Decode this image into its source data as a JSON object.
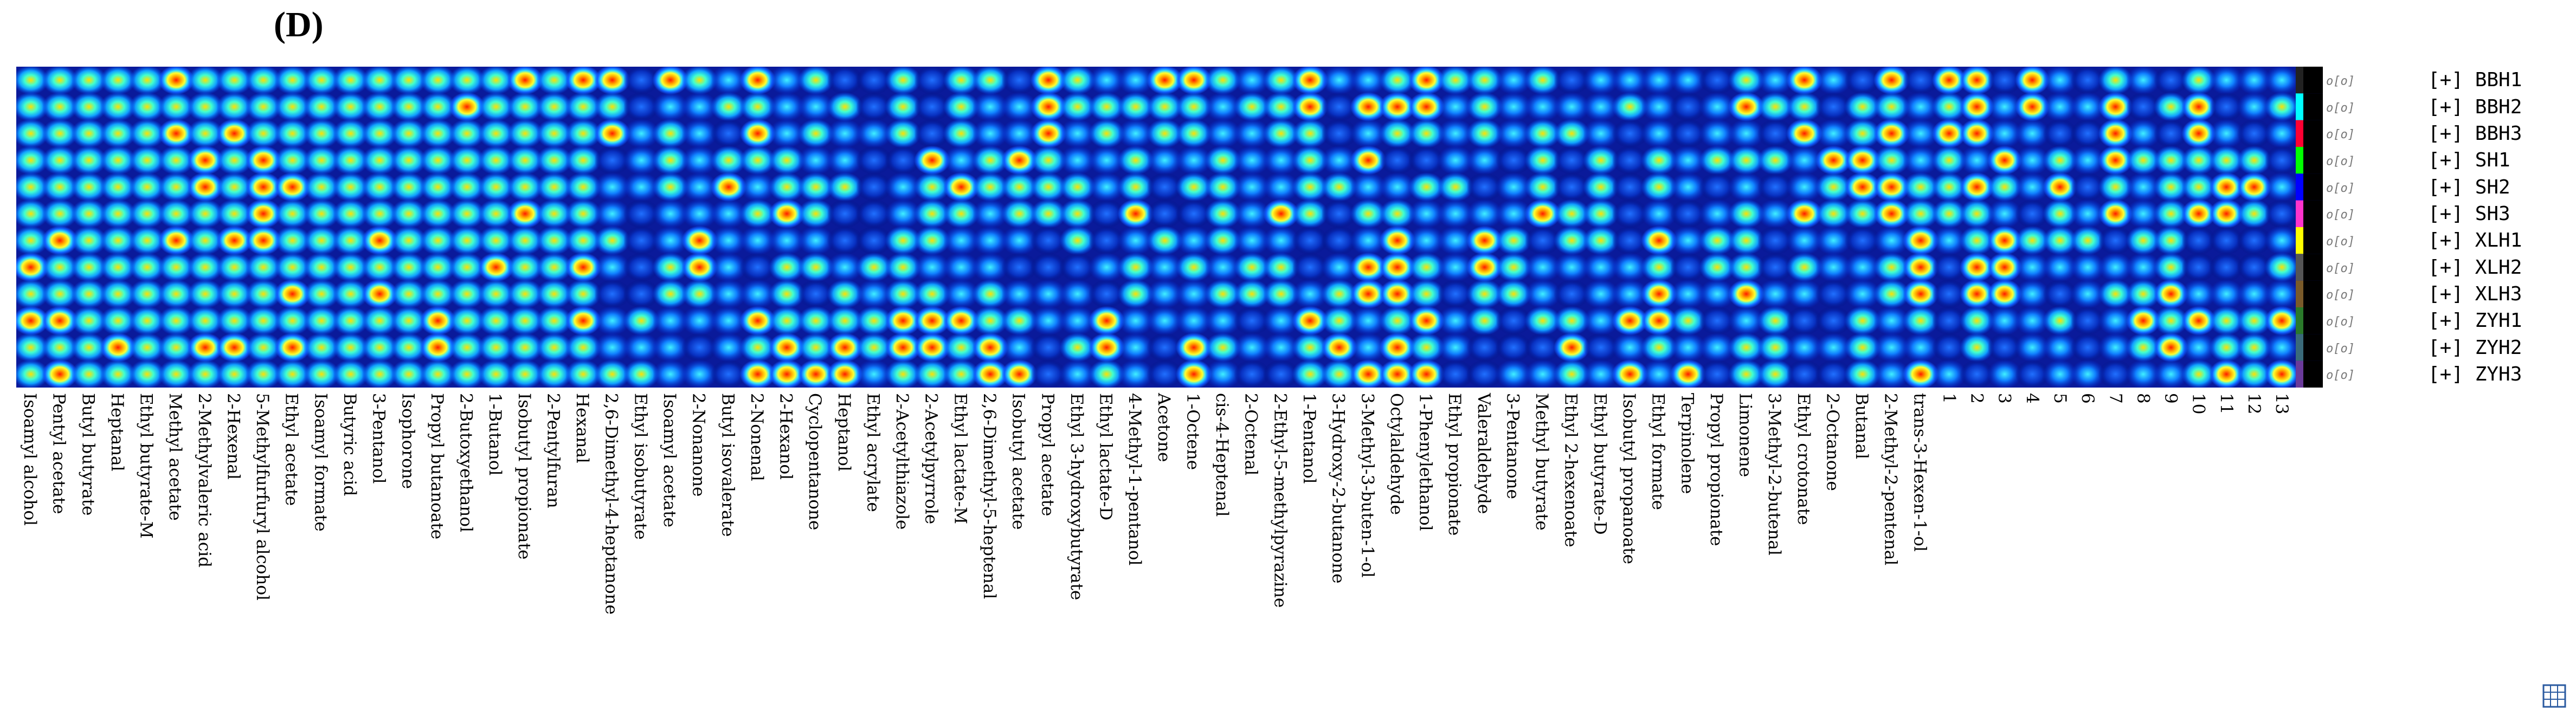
{
  "panel_label": "(D)",
  "chart_data": {
    "type": "heatmap",
    "description_free": true,
    "samples": [
      {
        "name": "BBH1",
        "color": "#222222"
      },
      {
        "name": "BBH2",
        "color": "#00ffff"
      },
      {
        "name": "BBH3",
        "color": "#ff0033"
      },
      {
        "name": "SH1",
        "color": "#00ff00"
      },
      {
        "name": "SH2",
        "color": "#0000ff"
      },
      {
        "name": "SH3",
        "color": "#ff33cc"
      },
      {
        "name": "XLH1",
        "color": "#ffff00"
      },
      {
        "name": "XLH2",
        "color": "#555555"
      },
      {
        "name": "XLH3",
        "color": "#7a5a2a"
      },
      {
        "name": "ZYH1",
        "color": "#2a7a2a"
      },
      {
        "name": "ZYH2",
        "color": "#3a6a7a"
      },
      {
        "name": "ZYH3",
        "color": "#6a3a9a"
      }
    ],
    "legend_prefix": "[+]",
    "swatch_text": "o[o]",
    "compounds": [
      "Isoamyl alcohol",
      "Pentyl acetate",
      "Butyl butyrate",
      "Heptanal",
      "Ethyl butyrate-M",
      "Methyl acetate",
      "2-Methylvaleric acid",
      "2-Hexenal",
      "5-Methylfurfuryl alcohol",
      "Ethyl acetate",
      "Isoamyl formate",
      "Butyric acid",
      "3-Pentanol",
      "Isophorone",
      "Propyl butanoate",
      "2-Butoxyethanol",
      "1-Butanol",
      "Isobutyl propionate",
      "2-Pentylfuran",
      "Hexanal",
      "2,6-Dimethyl-4-heptanone",
      "Ethyl isobutyrate",
      "Isoamyl acetate",
      "2-Nonanone",
      "Butyl isovalerate",
      "2-Nonenal",
      "2-Hexanol",
      "Cyclopentanone",
      "Heptanol",
      "Ethyl acrylate",
      "2-Acetylthiazole",
      "2-Acetylpyrrole",
      "Ethyl lactate-M",
      "2,6-Dimethyl-5-heptenal",
      "Isobutyl acetate",
      "Propyl acetate",
      "Ethyl 3-hydroxybutyrate",
      "Ethyl lactate-D",
      "4-Methyl-1-pentanol",
      "Acetone",
      "1-Octene",
      "cis-4-Heptenal",
      "2-Octenal",
      "2-Ethyl-5-methylpyrazine",
      "1-Pentanol",
      "3-Hydroxy-2-butanone",
      "3-Methyl-3-buten-1-ol",
      "Octylaldehyde",
      "1-Phenylethanol",
      "Ethyl propionate",
      "Valeraldehyde",
      "3-Pentanone",
      "Methyl butyrate",
      "Ethyl 2-hexenoate",
      "Ethyl butyrate-D",
      "Isobutyl propanoate",
      "Ethyl formate",
      "Terpinolene",
      "Propyl propionate",
      "Limonene",
      "3-Methyl-2-butenal",
      "Ethyl crotonate",
      "2-Octanone",
      "Butanal",
      "2-Methyl-2-pentenal",
      "trans-3-Hexen-1-ol"
    ],
    "unknown_peaks": [
      "1",
      "2",
      "3",
      "4",
      "5",
      "6",
      "7",
      "8",
      "9",
      "10",
      "11",
      "12",
      "13"
    ]
  }
}
